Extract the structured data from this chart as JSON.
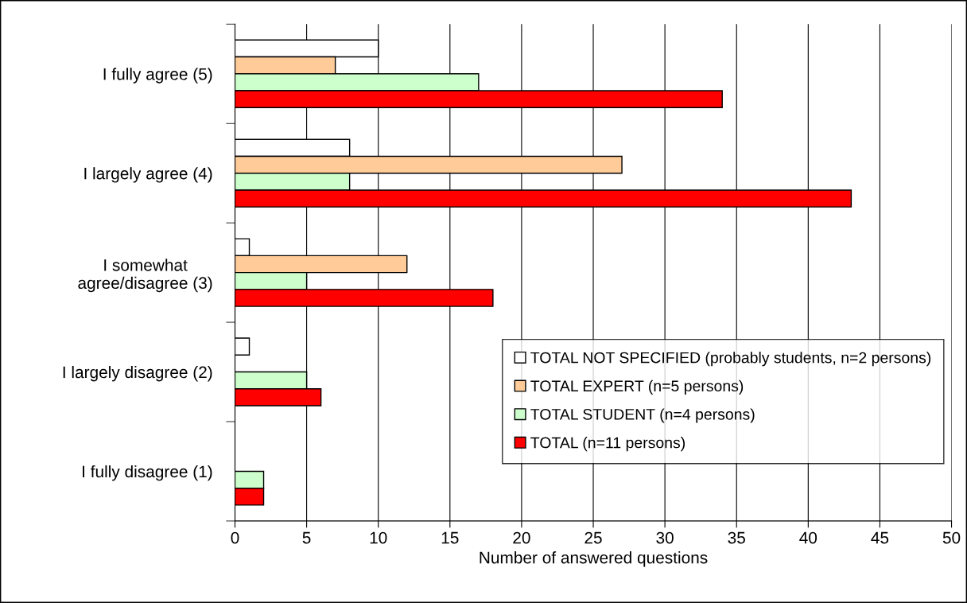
{
  "chart_data": {
    "type": "bar",
    "orientation": "horizontal",
    "xlabel": "Number of answered questions",
    "categories": [
      "I fully agree (5)",
      "I largely agree (4)",
      "I somewhat\nagree/disagree (3)",
      "I largely disagree (2)",
      "I fully disagree (1)"
    ],
    "series": [
      {
        "name": "TOTAL NOT SPECIFIED (probably students, n=2 persons)",
        "color": "#ffffff",
        "values": [
          10,
          8,
          1,
          1,
          null
        ]
      },
      {
        "name": "TOTAL EXPERT (n=5 persons)",
        "color": "#ffcc99",
        "values": [
          7,
          27,
          12,
          null,
          null
        ]
      },
      {
        "name": "TOTAL STUDENT (n=4 persons)",
        "color": "#ccffcc",
        "values": [
          17,
          8,
          5,
          5,
          2
        ]
      },
      {
        "name": "TOTAL (n=11 persons)",
        "color": "#ff0000",
        "values": [
          34,
          43,
          18,
          6,
          2
        ]
      }
    ],
    "xlim": [
      0,
      50
    ],
    "xticks": [
      0,
      5,
      10,
      15,
      20,
      25,
      30,
      35,
      40,
      45,
      50
    ],
    "grid": "x",
    "legend": "bottom right"
  }
}
